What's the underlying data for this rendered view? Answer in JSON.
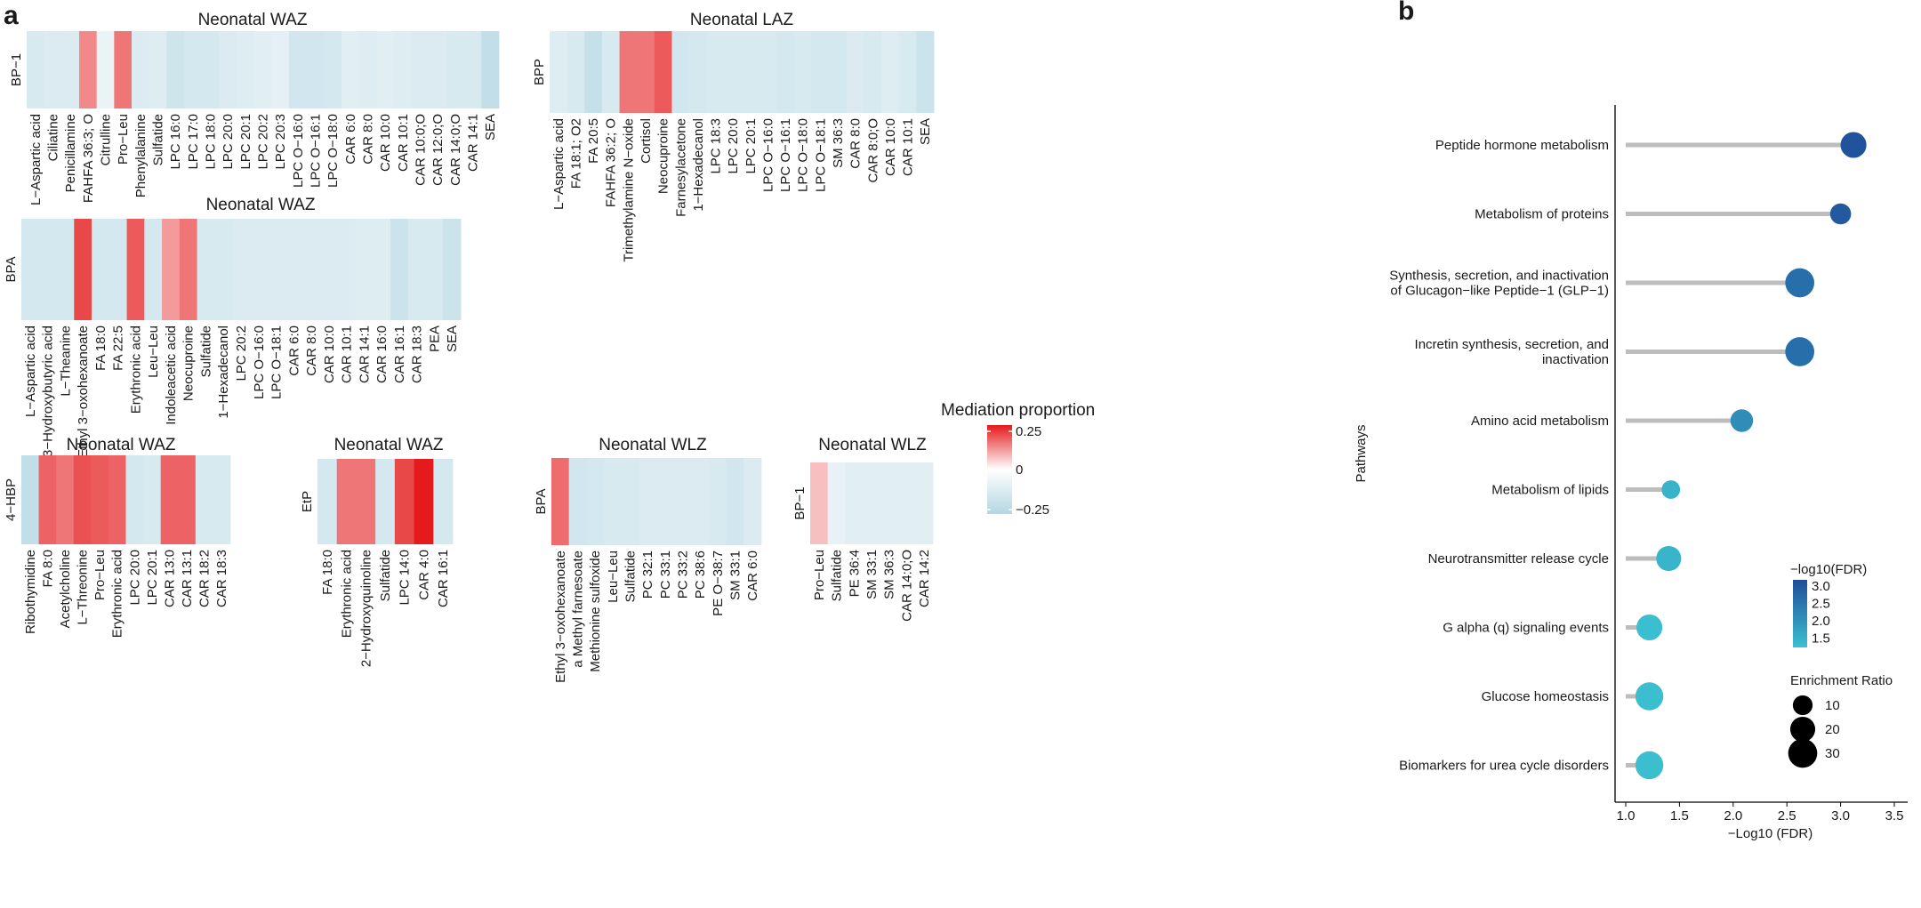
{
  "panel_labels": {
    "a": "a",
    "b": "b"
  },
  "legend": {
    "title": "Mediation proportion",
    "ticks": [
      "0.25",
      "0",
      "−0.25"
    ],
    "min": -0.25,
    "max": 0.25,
    "colors": {
      "low": "#b3d6e2",
      "mid": "#ffffff",
      "high": "#e41a1c"
    }
  },
  "chart_data": [
    {
      "type": "heatmap",
      "title": "Neonatal WAZ",
      "ylabel": "BP−1",
      "categories": [
        "L−Aspartic acid",
        "Ciliatine",
        "Penicillamine",
        "FAHFA 36:3; O",
        "Citrulline",
        "Pro−Leu",
        "Phenylalanine",
        "Sulfatide",
        "LPC 16:0",
        "LPC 17:0",
        "LPC 18:0",
        "LPC 20:0",
        "LPC 20:1",
        "LPC 20:2",
        "LPC 20:3",
        "LPC O−16:0",
        "LPC O−16:1",
        "LPC O−18:0",
        "CAR 6:0",
        "CAR 8:0",
        "CAR 10:0",
        "CAR 10:1",
        "CAR 10:0;O",
        "CAR 12:0;O",
        "CAR 14:0;O",
        "CAR 14:1",
        "SEA"
      ],
      "values": [
        -0.13,
        -0.12,
        -0.12,
        0.13,
        -0.07,
        0.15,
        -0.12,
        -0.11,
        -0.16,
        -0.14,
        -0.14,
        -0.12,
        -0.11,
        -0.1,
        -0.09,
        -0.15,
        -0.15,
        -0.14,
        -0.1,
        -0.11,
        -0.1,
        -0.11,
        -0.12,
        -0.12,
        -0.13,
        -0.13,
        -0.2
      ]
    },
    {
      "type": "heatmap",
      "title": "Neonatal LAZ",
      "ylabel": "BPP",
      "categories": [
        "L−Aspartic acid",
        "FA 18:1; O2",
        "FA 20:5",
        "FAHFA 36:2; O",
        "Trimethylamine N−oxide",
        "Cortisol",
        "Neocuproine",
        "Farnesylacetone",
        "1−Hexadecanol",
        "LPC 18:3",
        "LPC 20:0",
        "LPC 20:1",
        "LPC O−16:0",
        "LPC O−16:1",
        "LPC O−18:0",
        "LPC O−18:1",
        "SM 36:3",
        "CAR 8:0",
        "CAR 8:0;O",
        "CAR 10:0",
        "CAR 10:1",
        "SEA"
      ],
      "values": [
        -0.11,
        -0.13,
        -0.19,
        -0.13,
        0.15,
        0.15,
        0.18,
        -0.15,
        -0.14,
        -0.13,
        -0.13,
        -0.13,
        -0.13,
        -0.14,
        -0.13,
        -0.14,
        -0.14,
        -0.12,
        -0.13,
        -0.11,
        -0.13,
        -0.17
      ]
    },
    {
      "type": "heatmap",
      "title": "Neonatal WAZ",
      "ylabel": "BPA",
      "categories": [
        "L−Aspartic acid",
        "3−Hydroxybutyric acid",
        "L−Theanine",
        "Ethyl 3−oxohexanoate",
        "FA 18:0",
        "FA 22:5",
        "Erythronic acid",
        "Leu−Leu",
        "Indoleacetic acid",
        "Neocuproine",
        "Sulfatide",
        "1−Hexadecanol",
        "LPC 20:2",
        "LPC O−16:0",
        "LPC O−18:1",
        "CAR 6:0",
        "CAR 8:0",
        "CAR 10:0",
        "CAR 10:1",
        "CAR 14:1",
        "CAR 16:0",
        "CAR 16:1",
        "CAR 18:3",
        "PEA",
        "SEA"
      ],
      "values": [
        -0.14,
        -0.14,
        -0.14,
        0.2,
        -0.14,
        -0.14,
        0.18,
        -0.14,
        0.11,
        0.15,
        -0.13,
        -0.13,
        -0.12,
        -0.12,
        -0.12,
        -0.12,
        -0.12,
        -0.12,
        -0.12,
        -0.11,
        -0.11,
        -0.17,
        -0.13,
        -0.13,
        -0.17
      ]
    },
    {
      "type": "heatmap",
      "title": "Neonatal WAZ",
      "ylabel": "4−HBP",
      "categories": [
        "Ribothymidine",
        "FA 8:0",
        "Acetylcholine",
        "L−Threonine",
        "Pro−Leu",
        "Erythronic acid",
        "LPC 20:0",
        "LPC 20:1",
        "CAR 13:0",
        "CAR 13:1",
        "CAR 18:2",
        "CAR 18:3"
      ],
      "values": [
        -0.2,
        0.17,
        0.15,
        0.19,
        0.18,
        0.17,
        -0.14,
        -0.13,
        0.17,
        0.17,
        -0.13,
        -0.13
      ]
    },
    {
      "type": "heatmap",
      "title": "Neonatal WAZ",
      "ylabel": "EtP",
      "categories": [
        "FA 18:0",
        "Erythronic acid",
        "2−Hydroxyquinoline",
        "Sulfatide",
        "LPC 14:0",
        "CAR 4:0",
        "CAR 16:1"
      ],
      "values": [
        -0.14,
        0.15,
        0.15,
        -0.14,
        0.2,
        0.25,
        -0.14
      ]
    },
    {
      "type": "heatmap",
      "title": "Neonatal WLZ",
      "ylabel": "BPA",
      "categories": [
        "Ethyl 3−oxohexanoate",
        "a Methyl farnesoate",
        "Methionine sulfoxide",
        "Leu−Leu",
        "Sulfatide",
        "PC 32:1",
        "PC 33:1",
        "PC 33:2",
        "PC 38:6",
        "PE O−38:7",
        "SM 33:1",
        "CAR 6:0"
      ],
      "values": [
        0.16,
        -0.15,
        -0.14,
        -0.13,
        -0.13,
        -0.12,
        -0.12,
        -0.12,
        -0.12,
        -0.13,
        -0.15,
        -0.12
      ]
    },
    {
      "type": "heatmap",
      "title": "Neonatal WLZ",
      "ylabel": "BP−1",
      "categories": [
        "Pro−Leu",
        "Sulfatide",
        "PE 36:4",
        "SM 33:1",
        "SM 36:3",
        "CAR 14:0;O",
        "CAR 14:2"
      ],
      "values": [
        0.07,
        -0.08,
        -0.1,
        -0.1,
        -0.1,
        -0.1,
        -0.1
      ]
    },
    {
      "type": "scatter",
      "title": "",
      "xlabel": "−Log10 (FDR)",
      "ylabel": "Pathways",
      "xlim": [
        0.9,
        3.6
      ],
      "xticks": [
        "1.0",
        "1.5",
        "2.0",
        "2.5",
        "3.0",
        "3.5"
      ],
      "categories": [
        [
          "Peptide hormone metabolism"
        ],
        [
          "Metabolism of proteins"
        ],
        [
          "Synthesis, secretion, and inactivation",
          "of Glucagon−like Peptide−1 (GLP−1)"
        ],
        [
          "Incretin synthesis, secretion, and",
          "inactivation"
        ],
        [
          "Amino acid metabolism"
        ],
        [
          "Metabolism of lipids"
        ],
        [
          "Neurotransmitter release cycle"
        ],
        [
          "G alpha (q) signaling events"
        ],
        [
          "Glucose homeostasis"
        ],
        [
          "Biomarkers for urea cycle disorders"
        ]
      ],
      "x": [
        3.12,
        3.0,
        2.62,
        2.62,
        2.08,
        1.42,
        1.4,
        1.22,
        1.22,
        1.22
      ],
      "enrichment_ratio": [
        22,
        12,
        30,
        30,
        15,
        8,
        20,
        22,
        27,
        27
      ],
      "color_legend": {
        "title": "−log10(FDR)",
        "ticks": [
          "3.0",
          "2.5",
          "2.0",
          "1.5"
        ],
        "values": [
          3.0,
          2.5,
          2.0,
          1.5
        ],
        "low": "#3bbfd0",
        "high": "#1f4e9a"
      },
      "size_legend": {
        "title": "Enrichment Ratio",
        "ticks": [
          "10",
          "20",
          "30"
        ],
        "values": [
          10,
          20,
          30
        ]
      }
    }
  ]
}
